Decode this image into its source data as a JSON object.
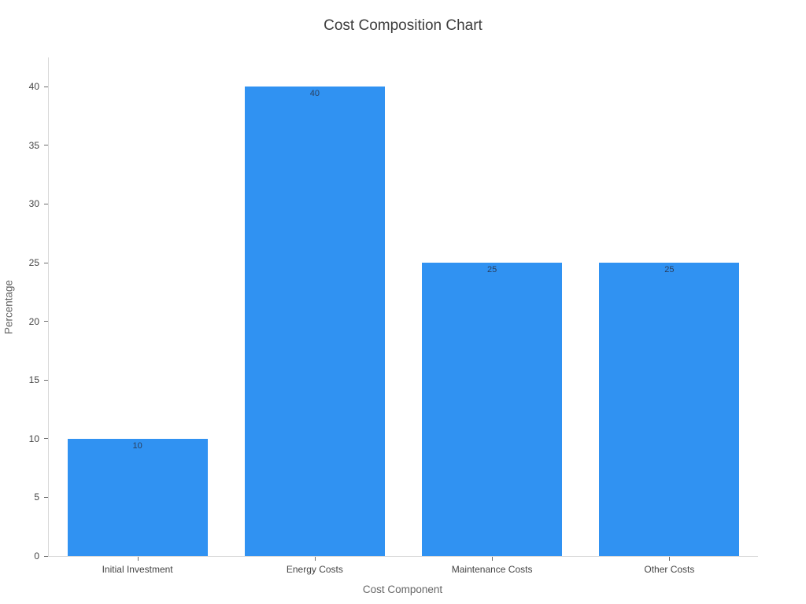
{
  "chart_data": {
    "type": "bar",
    "title": "Cost Composition Chart",
    "categories": [
      "Initial Investment",
      "Energy Costs",
      "Maintenance Costs",
      "Other Costs"
    ],
    "values": [
      10,
      40,
      25,
      25
    ],
    "value_labels": [
      "10",
      "40",
      "25",
      "25"
    ],
    "xlabel": "Cost Component",
    "ylabel": "Percentage",
    "ylim": [
      0,
      42.5
    ],
    "yticks": [
      0,
      5,
      10,
      15,
      20,
      25,
      30,
      35,
      40
    ],
    "grid": false,
    "legend": "none",
    "orientation": "vertical",
    "bar_width_fraction": 0.79
  },
  "colors": {
    "bar_color": "#3092F2",
    "value_label_color": "#2a3f5f",
    "axis_line": "#d9d9d9",
    "tick_color": "#6e6e6e",
    "tick_label_color": "#444444",
    "axis_title_color": "#666666",
    "title_color": "#3d3d3d",
    "background": "#ffffff"
  }
}
